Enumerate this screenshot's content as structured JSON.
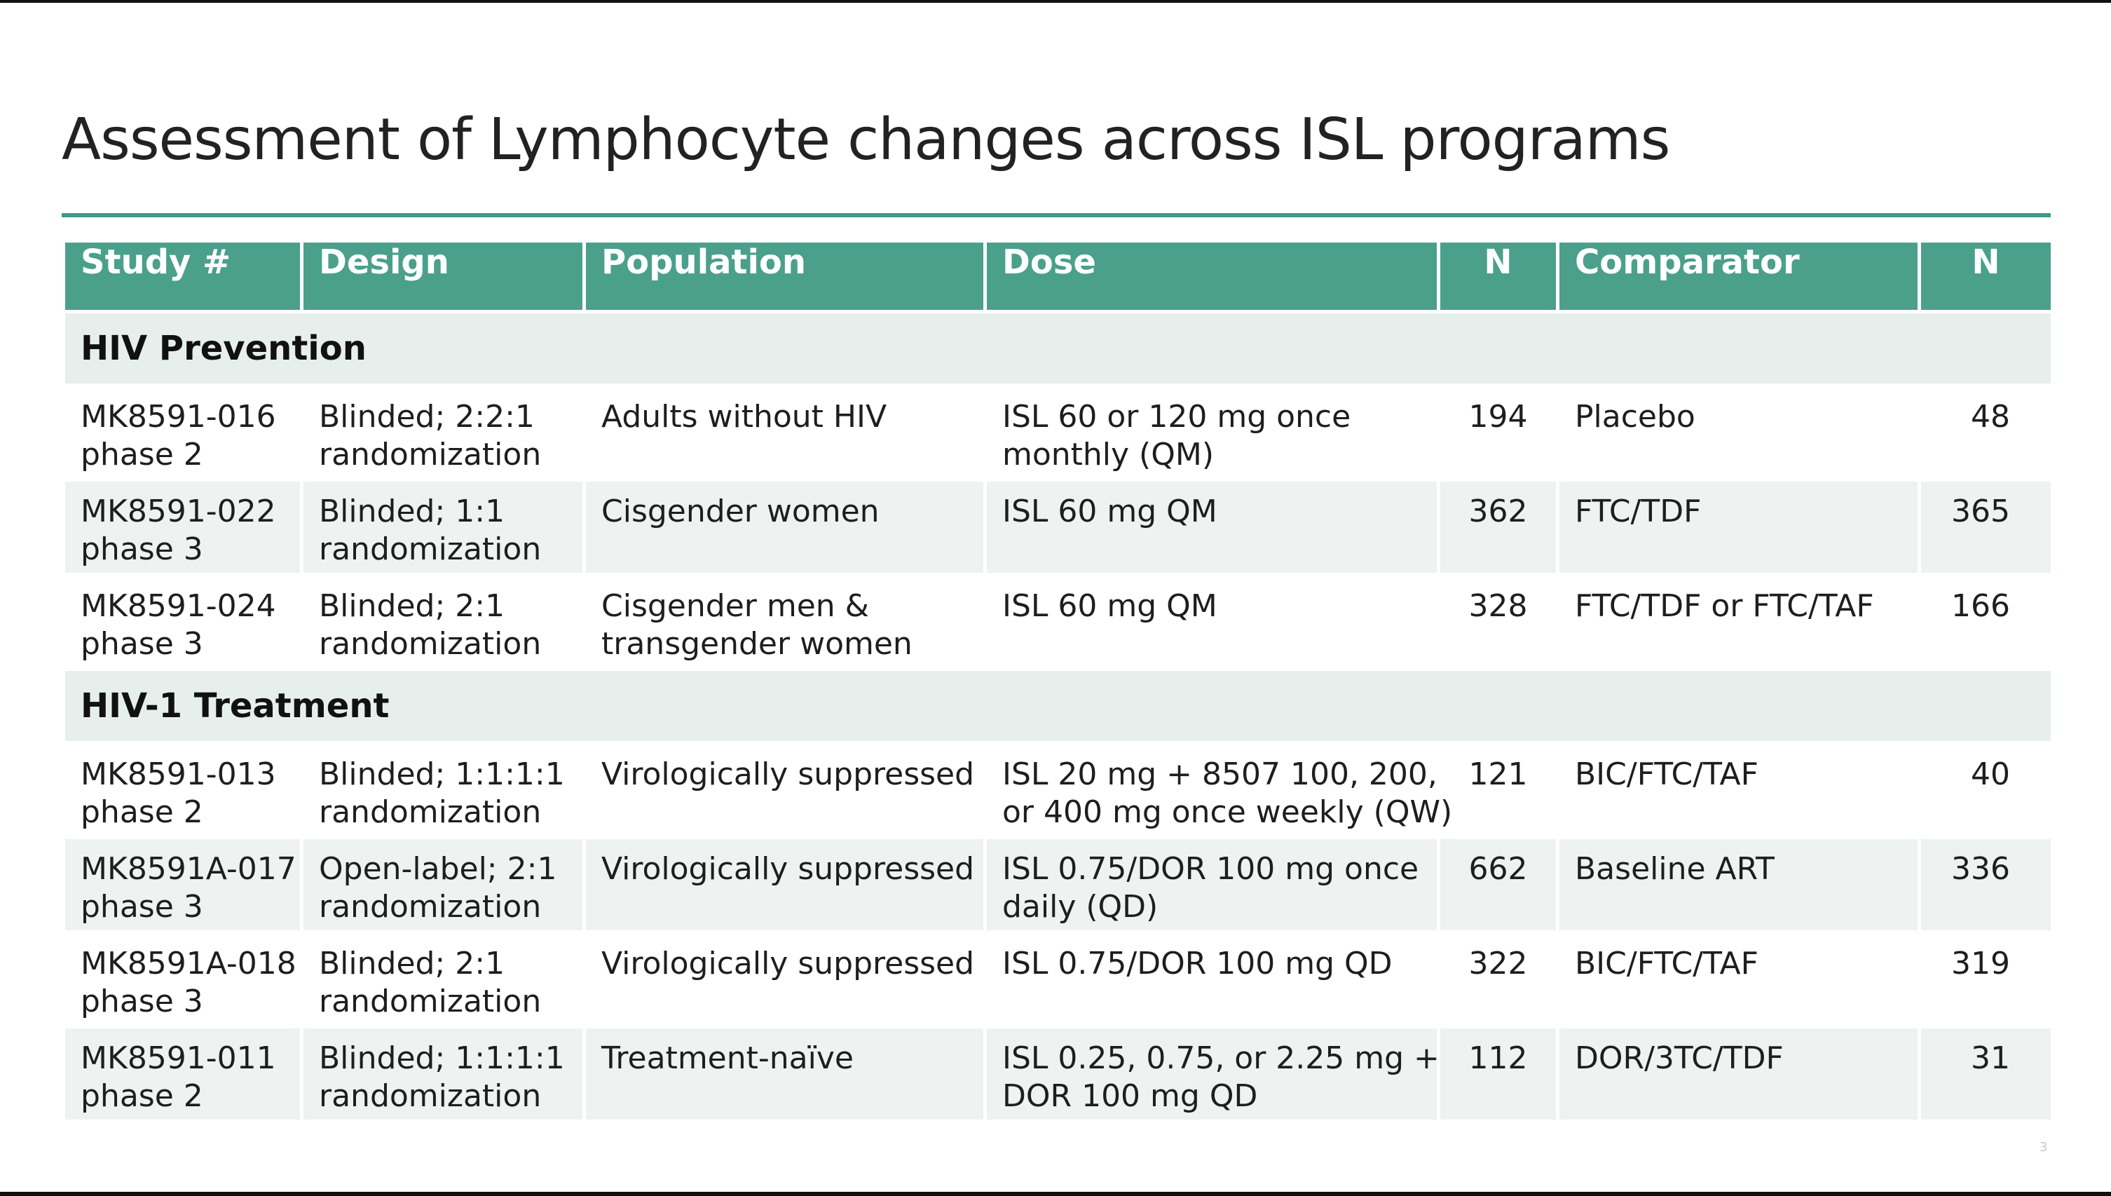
{
  "title": "Assessment of Lymphocyte changes across ISL programs",
  "page_number": "3",
  "table": {
    "headers": [
      "Study #",
      "Design",
      "Population",
      "Dose",
      "N",
      "Comparator",
      "N"
    ],
    "groups": [
      {
        "label": "HIV Prevention",
        "rows": [
          {
            "study": [
              "MK8591-016",
              "phase 2"
            ],
            "design": [
              "Blinded; 2:2:1",
              "randomization"
            ],
            "population": [
              "Adults without HIV"
            ],
            "dose": [
              "ISL 60 or 120 mg once",
              "monthly (QM)"
            ],
            "n": "194",
            "comparator": "Placebo",
            "comparator_n": "48"
          },
          {
            "study": [
              "MK8591-022",
              "phase 3"
            ],
            "design": [
              "Blinded; 1:1",
              "randomization"
            ],
            "population": [
              "Cisgender women"
            ],
            "dose": [
              "ISL 60 mg QM"
            ],
            "n": "362",
            "comparator": "FTC/TDF",
            "comparator_n": "365"
          },
          {
            "study": [
              "MK8591-024",
              "phase 3"
            ],
            "design": [
              "Blinded; 2:1",
              "randomization"
            ],
            "population": [
              "Cisgender men &",
              "transgender women"
            ],
            "dose": [
              "ISL 60 mg QM"
            ],
            "n": "328",
            "comparator": "FTC/TDF or FTC/TAF",
            "comparator_n": "166"
          }
        ]
      },
      {
        "label": "HIV-1 Treatment",
        "rows": [
          {
            "study": [
              "MK8591-013",
              "phase 2"
            ],
            "design": [
              "Blinded; 1:1:1:1",
              "randomization"
            ],
            "population": [
              "Virologically suppressed"
            ],
            "dose": [
              "ISL 20 mg + 8507 100, 200,",
              "or 400 mg once weekly (QW)"
            ],
            "n": "121",
            "comparator": "BIC/FTC/TAF",
            "comparator_n": "40"
          },
          {
            "study": [
              "MK8591A-017",
              "phase 3"
            ],
            "design": [
              "Open-label; 2:1",
              "randomization"
            ],
            "population": [
              "Virologically suppressed"
            ],
            "dose": [
              "ISL 0.75/DOR 100 mg once",
              "daily (QD)"
            ],
            "n": "662",
            "comparator": "Baseline ART",
            "comparator_n": "336"
          },
          {
            "study": [
              "MK8591A-018",
              "phase 3"
            ],
            "design": [
              "Blinded; 2:1",
              "randomization"
            ],
            "population": [
              "Virologically suppressed"
            ],
            "dose": [
              "ISL 0.75/DOR 100 mg QD"
            ],
            "n": "322",
            "comparator": "BIC/FTC/TAF",
            "comparator_n": "319"
          },
          {
            "study": [
              "MK8591-011",
              "phase 2"
            ],
            "design": [
              "Blinded; 1:1:1:1",
              "randomization"
            ],
            "population": [
              "Treatment-naïve"
            ],
            "dose": [
              "ISL 0.25, 0.75, or 2.25 mg +",
              "DOR 100 mg QD"
            ],
            "n": "112",
            "comparator": "DOR/3TC/TDF",
            "comparator_n": "31"
          }
        ]
      }
    ]
  }
}
